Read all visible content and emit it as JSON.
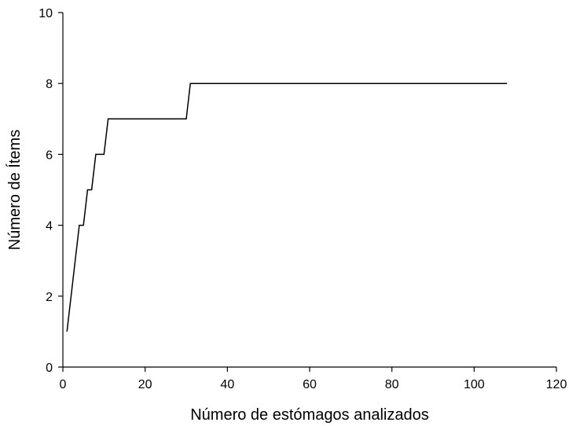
{
  "chart_data": {
    "type": "line",
    "title": "",
    "xlabel": "Número de estómagos analizados",
    "ylabel": "Número de Ítems",
    "xlim": [
      0,
      120
    ],
    "ylim": [
      0,
      10
    ],
    "xticks": [
      0,
      20,
      40,
      60,
      80,
      100,
      120
    ],
    "yticks": [
      0,
      2,
      4,
      6,
      8,
      10
    ],
    "grid": false,
    "legend": "none",
    "series": [
      {
        "color": "#000000",
        "x": [
          1,
          4,
          5,
          6,
          7,
          8,
          10,
          11,
          30,
          31,
          108
        ],
        "y": [
          1,
          4,
          4,
          5,
          5,
          6,
          6,
          7,
          7,
          8,
          8
        ]
      }
    ]
  }
}
